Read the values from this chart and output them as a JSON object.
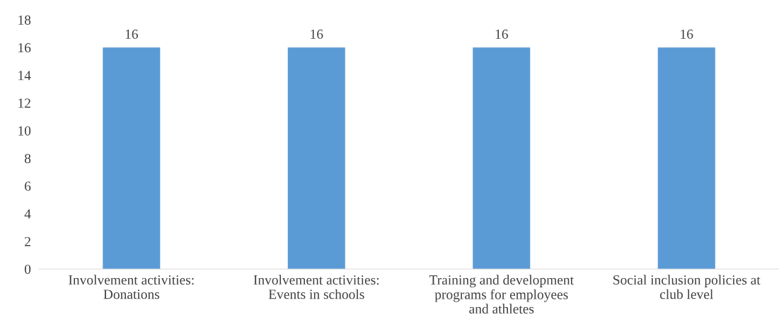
{
  "chart_data": {
    "type": "bar",
    "categories": [
      "Involvement activities:\nDonations",
      "Involvement activities:\nEvents in schools",
      "Training and development\nprograms for employees\nand athletes",
      "Social inclusion policies at\nclub level"
    ],
    "values": [
      16,
      16,
      16,
      16
    ],
    "color": "#5b9bd5",
    "ylim": [
      0,
      18
    ],
    "yticks": [
      0,
      2,
      4,
      6,
      8,
      10,
      12,
      14,
      16,
      18
    ],
    "data_labels": true,
    "grid": false,
    "legend": false
  }
}
